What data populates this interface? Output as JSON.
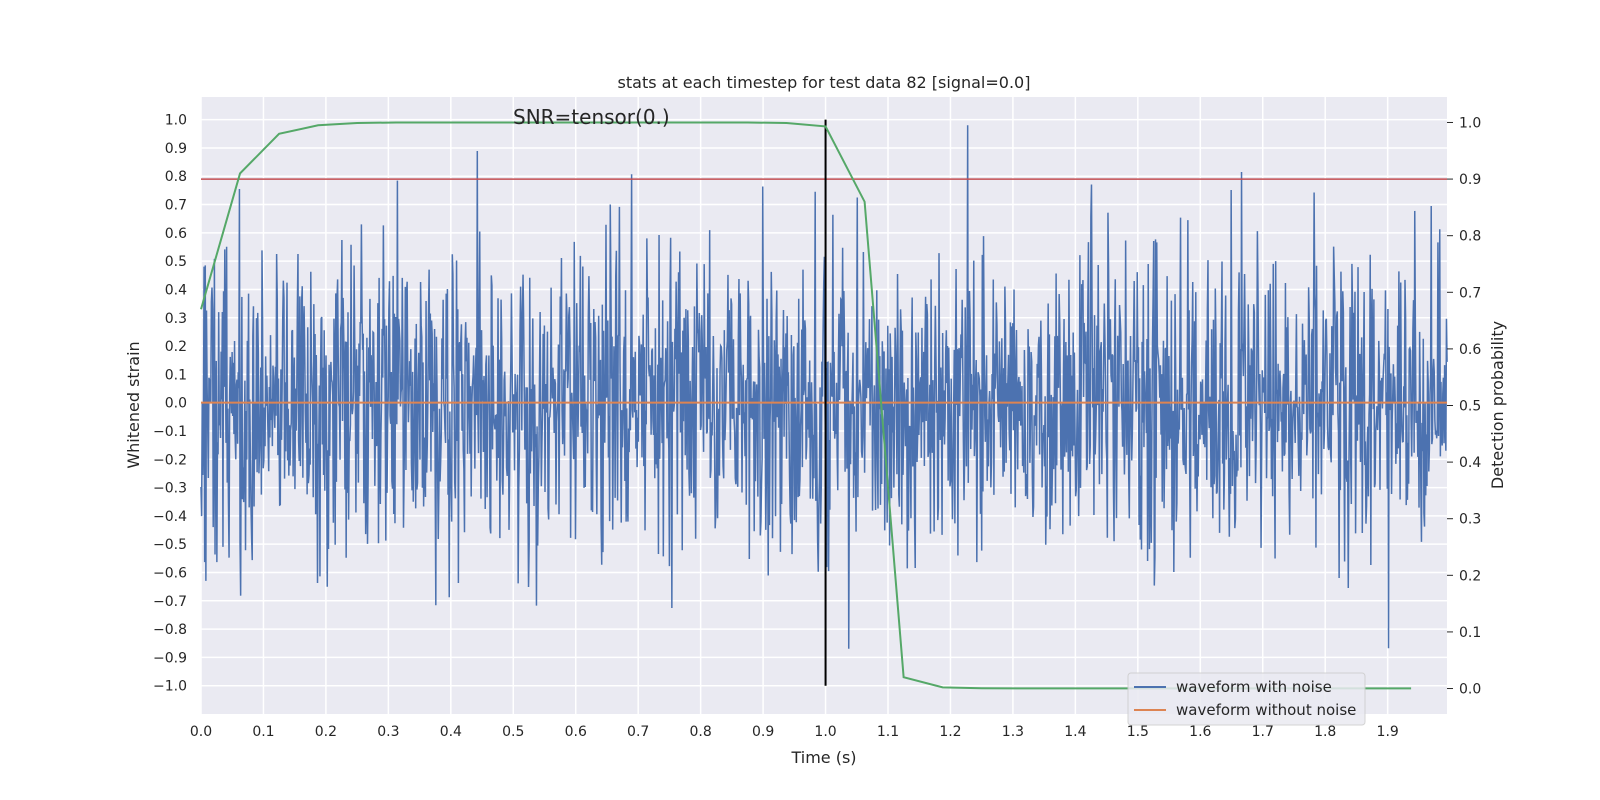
{
  "chart_data": {
    "type": "line",
    "title": "stats at each timestep for test data 82 [signal=0.0]",
    "xlabel": "Time (s)",
    "ylabel": "Whitened strain",
    "y2label": "Detection probability",
    "annotation": "SNR=tensor(0.)",
    "xlim": [
      0.0,
      1.995
    ],
    "ylim": [
      -1.1,
      1.08
    ],
    "y2lim": [
      -0.045,
      1.045
    ],
    "xticks": [
      0.0,
      0.1,
      0.2,
      0.3,
      0.4,
      0.5,
      0.6,
      0.7,
      0.8,
      0.9,
      1.0,
      1.1,
      1.2,
      1.3,
      1.4,
      1.5,
      1.6,
      1.7,
      1.8,
      1.9
    ],
    "xtick_labels": [
      "0.0",
      "0.1",
      "0.2",
      "0.3",
      "0.4",
      "0.5",
      "0.6",
      "0.7",
      "0.8",
      "0.9",
      "1.0",
      "1.1",
      "1.2",
      "1.3",
      "1.4",
      "1.5",
      "1.6",
      "1.7",
      "1.8",
      "1.9"
    ],
    "yticks": [
      -1.0,
      -0.9,
      -0.8,
      -0.7,
      -0.6,
      -0.5,
      -0.4,
      -0.3,
      -0.2,
      -0.1,
      0.0,
      0.1,
      0.2,
      0.3,
      0.4,
      0.5,
      0.6,
      0.7,
      0.8,
      0.9,
      1.0
    ],
    "ytick_labels": [
      "−1.0",
      "−0.9",
      "−0.8",
      "−0.7",
      "−0.6",
      "−0.5",
      "−0.4",
      "−0.3",
      "−0.2",
      "−0.1",
      "0.0",
      "0.1",
      "0.2",
      "0.3",
      "0.4",
      "0.5",
      "0.6",
      "0.7",
      "0.8",
      "0.9",
      "1.0"
    ],
    "y2ticks": [
      0.0,
      0.1,
      0.2,
      0.3,
      0.4,
      0.5,
      0.6,
      0.7,
      0.8,
      0.9,
      1.0
    ],
    "y2tick_labels": [
      "0.0",
      "0.1",
      "0.2",
      "0.3",
      "0.4",
      "0.5",
      "0.6",
      "0.7",
      "0.8",
      "0.9",
      "1.0"
    ],
    "grid": true,
    "legend_position": "lower-right",
    "series": [
      {
        "name": "waveform with noise",
        "axis": "left",
        "color": "#4c72b0",
        "sample_rate_hz": 1024,
        "amplitude_std": 0.27,
        "amplitude_peak": 0.98,
        "x_range": [
          0.0,
          1.995
        ]
      },
      {
        "name": "waveform without noise",
        "axis": "left",
        "color": "#dd8452",
        "x": [
          0.0,
          1.995
        ],
        "y": [
          0.0,
          0.0
        ]
      },
      {
        "axis": "right",
        "color": "#55a868",
        "x": [
          0.0,
          0.0625,
          0.125,
          0.1875,
          0.25,
          0.3125,
          0.375,
          0.4375,
          0.5,
          0.5625,
          0.625,
          0.6875,
          0.75,
          0.8125,
          0.875,
          0.9375,
          1.0,
          1.0625,
          1.125,
          1.1875,
          1.25,
          1.3125,
          1.375,
          1.4375,
          1.5,
          1.5625,
          1.625,
          1.6875,
          1.75,
          1.8125,
          1.875,
          1.9375
        ],
        "y": [
          0.67,
          0.91,
          0.98,
          0.995,
          0.999,
          1.0,
          1.0,
          1.0,
          1.0,
          1.0,
          1.0,
          1.0,
          1.0,
          1.0,
          1.0,
          0.999,
          0.993,
          0.86,
          0.02,
          0.002,
          0.0005,
          0.0003,
          0.0003,
          0.0002,
          0.0002,
          0.0002,
          0.0002,
          0.0002,
          0.0002,
          0.0002,
          0.0002,
          0.0002
        ]
      }
    ],
    "reference_lines": [
      {
        "orientation": "horizontal",
        "axis": "right",
        "value": 0.9,
        "color": "#c44e52"
      },
      {
        "orientation": "vertical",
        "value": 1.0,
        "y_from": -1.0,
        "y_to": 1.0,
        "color": "#000000"
      }
    ]
  }
}
